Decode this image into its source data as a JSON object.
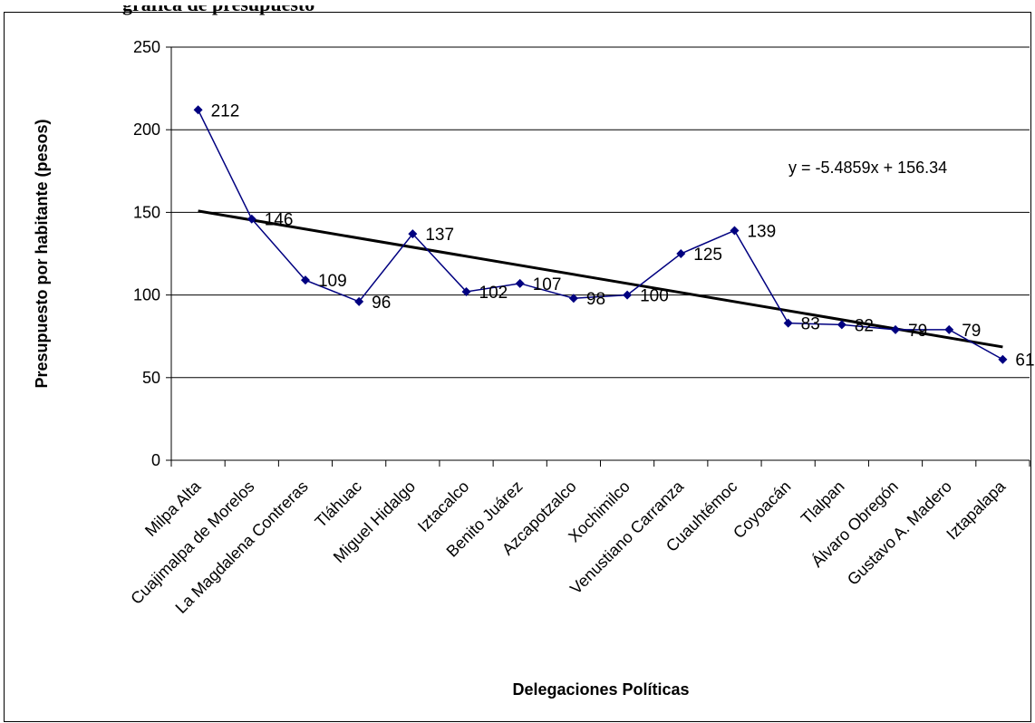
{
  "title_fragment": "gráfica de presupuesto",
  "chart_data": {
    "type": "line",
    "categories": [
      "Milpa Alta",
      "Cuajimalpa de Morelos",
      "La Magdalena Contreras",
      "Tláhuac",
      "Miguel Hidalgo",
      "Iztacalco",
      "Benito Juárez",
      "Azcapotzalco",
      "Xochimilco",
      "Venustiano Carranza",
      "Cuauhtémoc",
      "Coyoacán",
      "Tlalpan",
      "Álvaro Obregón",
      "Gustavo A. Madero",
      "Iztapalapa"
    ],
    "values": [
      212,
      146,
      109,
      96,
      137,
      102,
      107,
      98,
      100,
      125,
      139,
      83,
      82,
      79,
      79,
      61
    ],
    "data_labels": [
      "212",
      "146",
      "109",
      "96",
      "137",
      "102",
      "107",
      "98",
      "100",
      "125",
      "139",
      "83",
      "82",
      "79",
      "79",
      "61"
    ],
    "ylim": [
      0,
      250
    ],
    "yticks": [
      0,
      50,
      100,
      150,
      200,
      250
    ],
    "ylabel": "Presupuesto por habitante (pesos)",
    "xlabel": "Delegaciones Políticas",
    "trendline": {
      "slope": -5.4859,
      "intercept": 156.34,
      "label": "y = -5.4859x + 156.34"
    },
    "grid": "horizontal",
    "series_color": "#000080",
    "trend_color": "#000000",
    "marker": "diamond"
  }
}
